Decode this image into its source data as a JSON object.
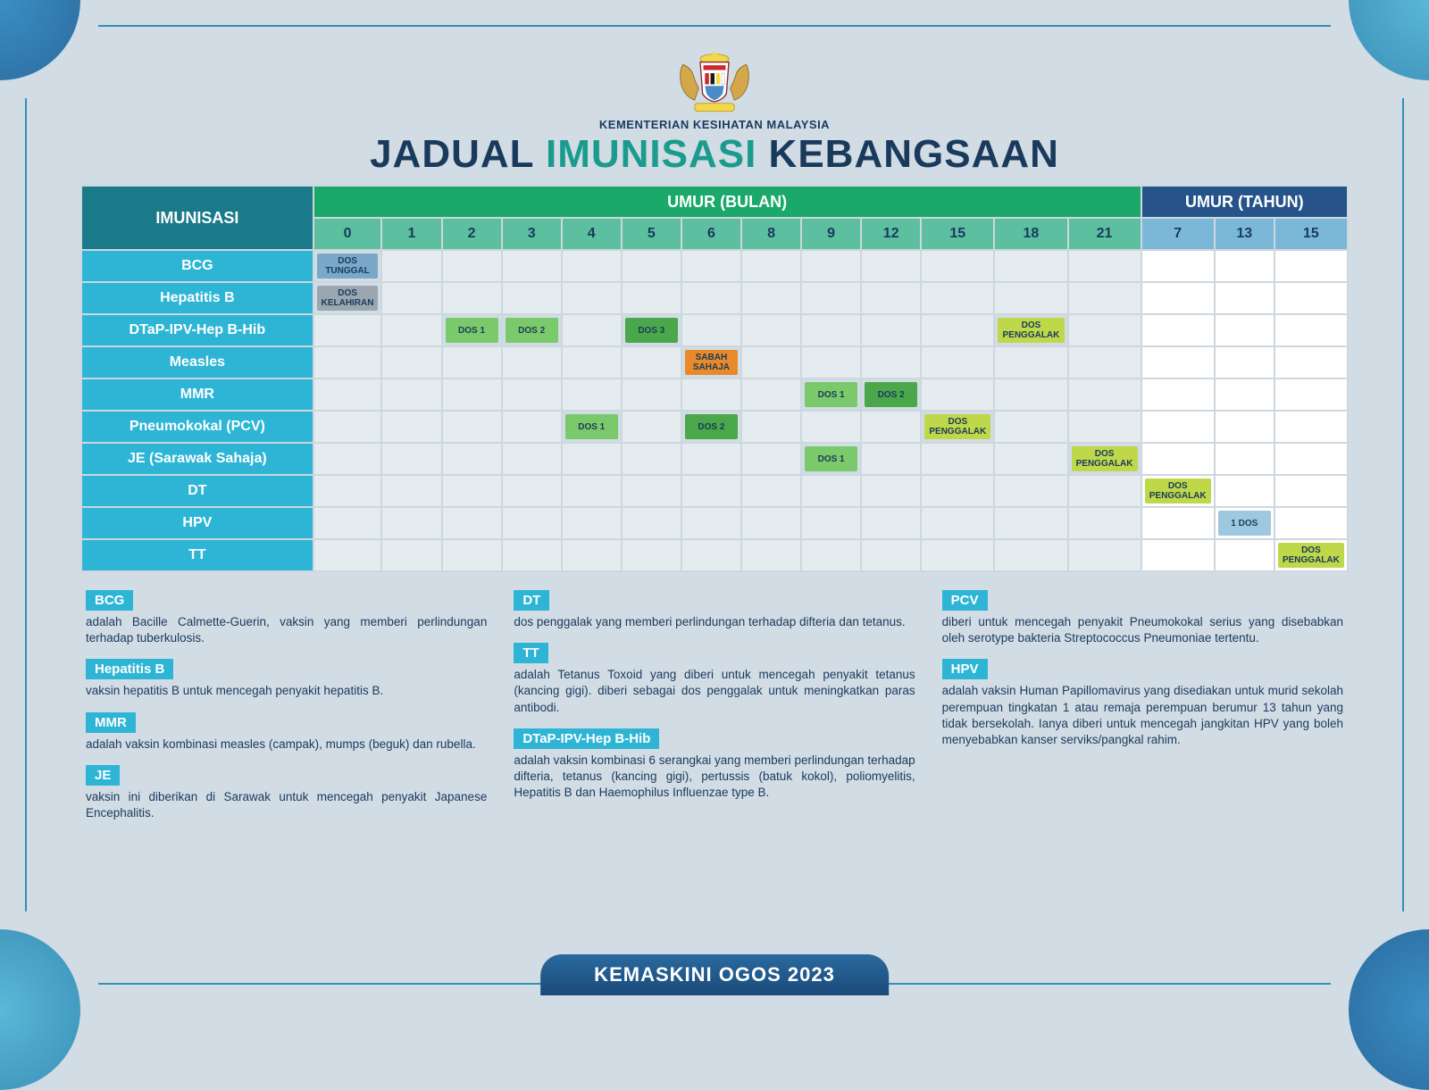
{
  "header": {
    "ministry": "KEMENTERIAN KESIHATAN MALAYSIA",
    "title_pre": "JADUAL ",
    "title_highlight": "IMUNISASI",
    "title_post": " KEBANGSAAN"
  },
  "table": {
    "header_imunisasi": "IMUNISASI",
    "header_bulan": "UMUR (BULAN)",
    "header_tahun": "UMUR (TAHUN)",
    "month_cols": [
      "0",
      "1",
      "2",
      "3",
      "4",
      "5",
      "6",
      "8",
      "9",
      "12",
      "15",
      "18",
      "21"
    ],
    "year_cols": [
      "7",
      "13",
      "15"
    ],
    "rows": [
      {
        "name": "BCG",
        "cells": {
          "0": {
            "label": "DOS TUNGGAL",
            "bg": "#7aa8c8"
          }
        }
      },
      {
        "name": "Hepatitis B",
        "cells": {
          "0": {
            "label": "DOS KELAHIRAN",
            "bg": "#9aa7b0"
          }
        }
      },
      {
        "name": "DTaP-IPV-Hep B-Hib",
        "cells": {
          "2": {
            "label": "DOS 1",
            "bg": "#7ac96a"
          },
          "3": {
            "label": "DOS 2",
            "bg": "#7ac96a"
          },
          "5": {
            "label": "DOS 3",
            "bg": "#4aa84a"
          },
          "18": {
            "label": "DOS PENGGALAK",
            "bg": "#bfd84a"
          }
        }
      },
      {
        "name": "Measles",
        "cells": {
          "6": {
            "label": "SABAH SAHAJA",
            "bg": "#e88a2a"
          }
        }
      },
      {
        "name": "MMR",
        "cells": {
          "9": {
            "label": "DOS 1",
            "bg": "#7ac96a"
          },
          "12": {
            "label": "DOS 2",
            "bg": "#4aa84a"
          }
        }
      },
      {
        "name": "Pneumokokal (PCV)",
        "cells": {
          "4": {
            "label": "DOS 1",
            "bg": "#7ac96a"
          },
          "6": {
            "label": "DOS 2",
            "bg": "#4aa84a"
          },
          "15": {
            "label": "DOS PENGGALAK",
            "bg": "#bfd84a"
          }
        }
      },
      {
        "name": "JE (Sarawak Sahaja)",
        "cells": {
          "9": {
            "label": "DOS 1",
            "bg": "#7ac96a"
          },
          "21": {
            "label": "DOS PENGGALAK",
            "bg": "#bfd84a"
          }
        }
      },
      {
        "name": "DT",
        "cells": {
          "y7": {
            "label": "DOS PENGGALAK",
            "bg": "#bfd84a"
          }
        }
      },
      {
        "name": "HPV",
        "cells": {
          "y13": {
            "label": "1 DOS",
            "bg": "#9ec8e0"
          }
        }
      },
      {
        "name": "TT",
        "cells": {
          "y15": {
            "label": "DOS PENGGALAK",
            "bg": "#bfd84a"
          }
        }
      }
    ]
  },
  "definitions": [
    [
      {
        "label": "BCG",
        "text": "adalah Bacille Calmette-Guerin, vaksin yang memberi perlindungan terhadap tuberkulosis."
      },
      {
        "label": "Hepatitis B",
        "text": "vaksin hepatitis B untuk mencegah penyakit hepatitis B."
      },
      {
        "label": "MMR",
        "text": "adalah vaksin kombinasi measles (campak), mumps (beguk) dan rubella."
      },
      {
        "label": "JE",
        "text": "vaksin ini diberikan di Sarawak untuk mencegah penyakit Japanese Encephalitis."
      }
    ],
    [
      {
        "label": "DT",
        "text": "dos penggalak yang memberi perlindungan terhadap difteria dan tetanus."
      },
      {
        "label": "TT",
        "text": "adalah Tetanus Toxoid yang diberi untuk mencegah penyakit tetanus (kancing gigi). diberi sebagai dos penggalak untuk meningkatkan paras antibodi."
      },
      {
        "label": "DTaP-IPV-Hep B-Hib",
        "text": "adalah vaksin kombinasi 6 serangkai yang memberi perlindungan terhadap difteria, tetanus (kancing gigi), pertussis (batuk kokol), poliomyelitis, Hepatitis B dan Haemophilus Influenzae type B."
      }
    ],
    [
      {
        "label": "PCV",
        "text": "diberi untuk mencegah penyakit Pneumokokal serius  yang disebabkan oleh serotype bakteria Streptococcus Pneumoniae tertentu."
      },
      {
        "label": "HPV",
        "text": "adalah vaksin Human Papillomavirus yang disediakan untuk murid sekolah perempuan tingkatan 1 atau remaja perempuan berumur 13 tahun yang tidak bersekolah. Ianya diberi untuk mencegah jangkitan HPV yang boleh menyebabkan kanser serviks/pangkal rahim."
      }
    ]
  ],
  "footer": "KEMASKINI OGOS 2023"
}
